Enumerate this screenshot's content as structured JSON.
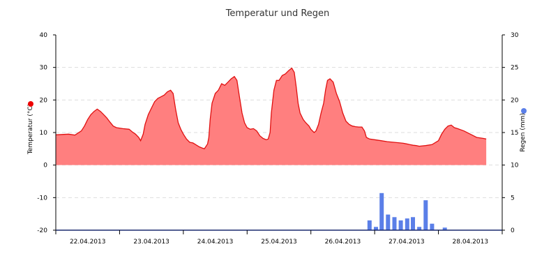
{
  "chart_data": {
    "type": "line",
    "title": "Temperatur und Regen",
    "legend": "none",
    "grid": true,
    "colors": {
      "temperature_line": "#e01010",
      "temperature_fill": "#ff7f7f",
      "rain_bar": "#5b7fe8",
      "left_marker": "#ee0000",
      "right_marker": "#5b7fe8",
      "axis": "#000000",
      "grid": "#dddddd"
    },
    "x_axis": {
      "ticks": [
        "22.04.2013",
        "23.04.2013",
        "24.04.2013",
        "25.04.2013",
        "26.04.2013",
        "27.04.2013",
        "28.04.2013"
      ],
      "range": [
        0,
        7
      ]
    },
    "y_left": {
      "label": "Temperatur (°C)",
      "range": [
        -20,
        40
      ],
      "ticks": [
        "40",
        "30",
        "20",
        "10",
        "0",
        "-10",
        "-20"
      ]
    },
    "y_right": {
      "label": "Regen (mm)",
      "range": [
        0,
        30
      ],
      "ticks": [
        "30",
        "25",
        "20",
        "15",
        "10",
        "5",
        "0"
      ]
    },
    "series": [
      {
        "name": "Temperatur",
        "kind": "area",
        "axis": "left",
        "points": [
          [
            0.0,
            9.3
          ],
          [
            0.1,
            9.4
          ],
          [
            0.2,
            9.5
          ],
          [
            0.3,
            9.2
          ],
          [
            0.4,
            10.5
          ],
          [
            0.45,
            12
          ],
          [
            0.5,
            14
          ],
          [
            0.55,
            15.5
          ],
          [
            0.6,
            16.5
          ],
          [
            0.65,
            17.2
          ],
          [
            0.7,
            16.5
          ],
          [
            0.75,
            15.5
          ],
          [
            0.8,
            14.5
          ],
          [
            0.85,
            13.2
          ],
          [
            0.9,
            12
          ],
          [
            0.95,
            11.5
          ],
          [
            1.05,
            11.2
          ],
          [
            1.15,
            11
          ],
          [
            1.2,
            10.2
          ],
          [
            1.25,
            9.5
          ],
          [
            1.3,
            8.5
          ],
          [
            1.33,
            7.5
          ],
          [
            1.37,
            9.5
          ],
          [
            1.4,
            12.5
          ],
          [
            1.45,
            15.5
          ],
          [
            1.5,
            17.5
          ],
          [
            1.55,
            19.5
          ],
          [
            1.6,
            20.5
          ],
          [
            1.65,
            21
          ],
          [
            1.7,
            21.5
          ],
          [
            1.75,
            22.5
          ],
          [
            1.8,
            23
          ],
          [
            1.84,
            22
          ],
          [
            1.88,
            17
          ],
          [
            1.92,
            13
          ],
          [
            1.96,
            11
          ],
          [
            2.0,
            9.5
          ],
          [
            2.05,
            8
          ],
          [
            2.1,
            7
          ],
          [
            2.15,
            6.8
          ],
          [
            2.2,
            6.2
          ],
          [
            2.25,
            5.6
          ],
          [
            2.3,
            5.2
          ],
          [
            2.33,
            5.0
          ],
          [
            2.38,
            6.5
          ],
          [
            2.4,
            8.5
          ],
          [
            2.42,
            14
          ],
          [
            2.45,
            19
          ],
          [
            2.5,
            22
          ],
          [
            2.55,
            23
          ],
          [
            2.6,
            25
          ],
          [
            2.65,
            24.5
          ],
          [
            2.7,
            25.5
          ],
          [
            2.75,
            26.5
          ],
          [
            2.8,
            27.2
          ],
          [
            2.84,
            26
          ],
          [
            2.88,
            21
          ],
          [
            2.92,
            16
          ],
          [
            2.96,
            13
          ],
          [
            3.0,
            11.5
          ],
          [
            3.05,
            11
          ],
          [
            3.1,
            11.2
          ],
          [
            3.15,
            10.5
          ],
          [
            3.2,
            9
          ],
          [
            3.25,
            8.2
          ],
          [
            3.3,
            7.8
          ],
          [
            3.33,
            8
          ],
          [
            3.36,
            10
          ],
          [
            3.38,
            16
          ],
          [
            3.42,
            23
          ],
          [
            3.46,
            26
          ],
          [
            3.5,
            26
          ],
          [
            3.55,
            27.5
          ],
          [
            3.6,
            28
          ],
          [
            3.65,
            29
          ],
          [
            3.7,
            29.8
          ],
          [
            3.74,
            28.5
          ],
          [
            3.77,
            24
          ],
          [
            3.8,
            19
          ],
          [
            3.83,
            16
          ],
          [
            3.88,
            14
          ],
          [
            3.92,
            13
          ],
          [
            3.97,
            12
          ],
          [
            4.0,
            11
          ],
          [
            4.05,
            10
          ],
          [
            4.08,
            10.5
          ],
          [
            4.12,
            12.5
          ],
          [
            4.16,
            16
          ],
          [
            4.2,
            19
          ],
          [
            4.23,
            23
          ],
          [
            4.26,
            26
          ],
          [
            4.3,
            26.5
          ],
          [
            4.35,
            25.5
          ],
          [
            4.4,
            22
          ],
          [
            4.45,
            19.5
          ],
          [
            4.5,
            16
          ],
          [
            4.55,
            13.5
          ],
          [
            4.6,
            12.5
          ],
          [
            4.65,
            12
          ],
          [
            4.7,
            11.8
          ],
          [
            4.75,
            11.7
          ],
          [
            4.8,
            11.7
          ],
          [
            4.84,
            10.5
          ],
          [
            4.87,
            8.5
          ],
          [
            4.92,
            8
          ],
          [
            5.0,
            7.8
          ],
          [
            5.1,
            7.5
          ],
          [
            5.2,
            7.2
          ],
          [
            5.3,
            7.0
          ],
          [
            5.4,
            6.8
          ],
          [
            5.45,
            6.7
          ],
          [
            5.5,
            6.5
          ],
          [
            5.55,
            6.3
          ],
          [
            5.6,
            6.1
          ],
          [
            5.65,
            6
          ],
          [
            5.7,
            5.8
          ],
          [
            5.8,
            6
          ],
          [
            5.9,
            6.3
          ],
          [
            6.0,
            7.5
          ],
          [
            6.05,
            9.5
          ],
          [
            6.1,
            11
          ],
          [
            6.15,
            12
          ],
          [
            6.2,
            12.3
          ],
          [
            6.25,
            11.5
          ],
          [
            6.3,
            11.2
          ],
          [
            6.4,
            10.5
          ],
          [
            6.5,
            9.5
          ],
          [
            6.6,
            8.5
          ],
          [
            6.7,
            8.2
          ],
          [
            6.75,
            8.0
          ]
        ]
      },
      {
        "name": "Regen",
        "kind": "bar",
        "axis": "right",
        "points": [
          [
            4.92,
            1.5
          ],
          [
            5.02,
            0.5
          ],
          [
            5.11,
            5.7
          ],
          [
            5.21,
            2.4
          ],
          [
            5.31,
            2.0
          ],
          [
            5.41,
            1.5
          ],
          [
            5.51,
            1.8
          ],
          [
            5.6,
            2.0
          ],
          [
            5.7,
            0.5
          ],
          [
            5.8,
            4.6
          ],
          [
            5.9,
            1.0
          ],
          [
            6.1,
            0.4
          ]
        ]
      }
    ]
  }
}
